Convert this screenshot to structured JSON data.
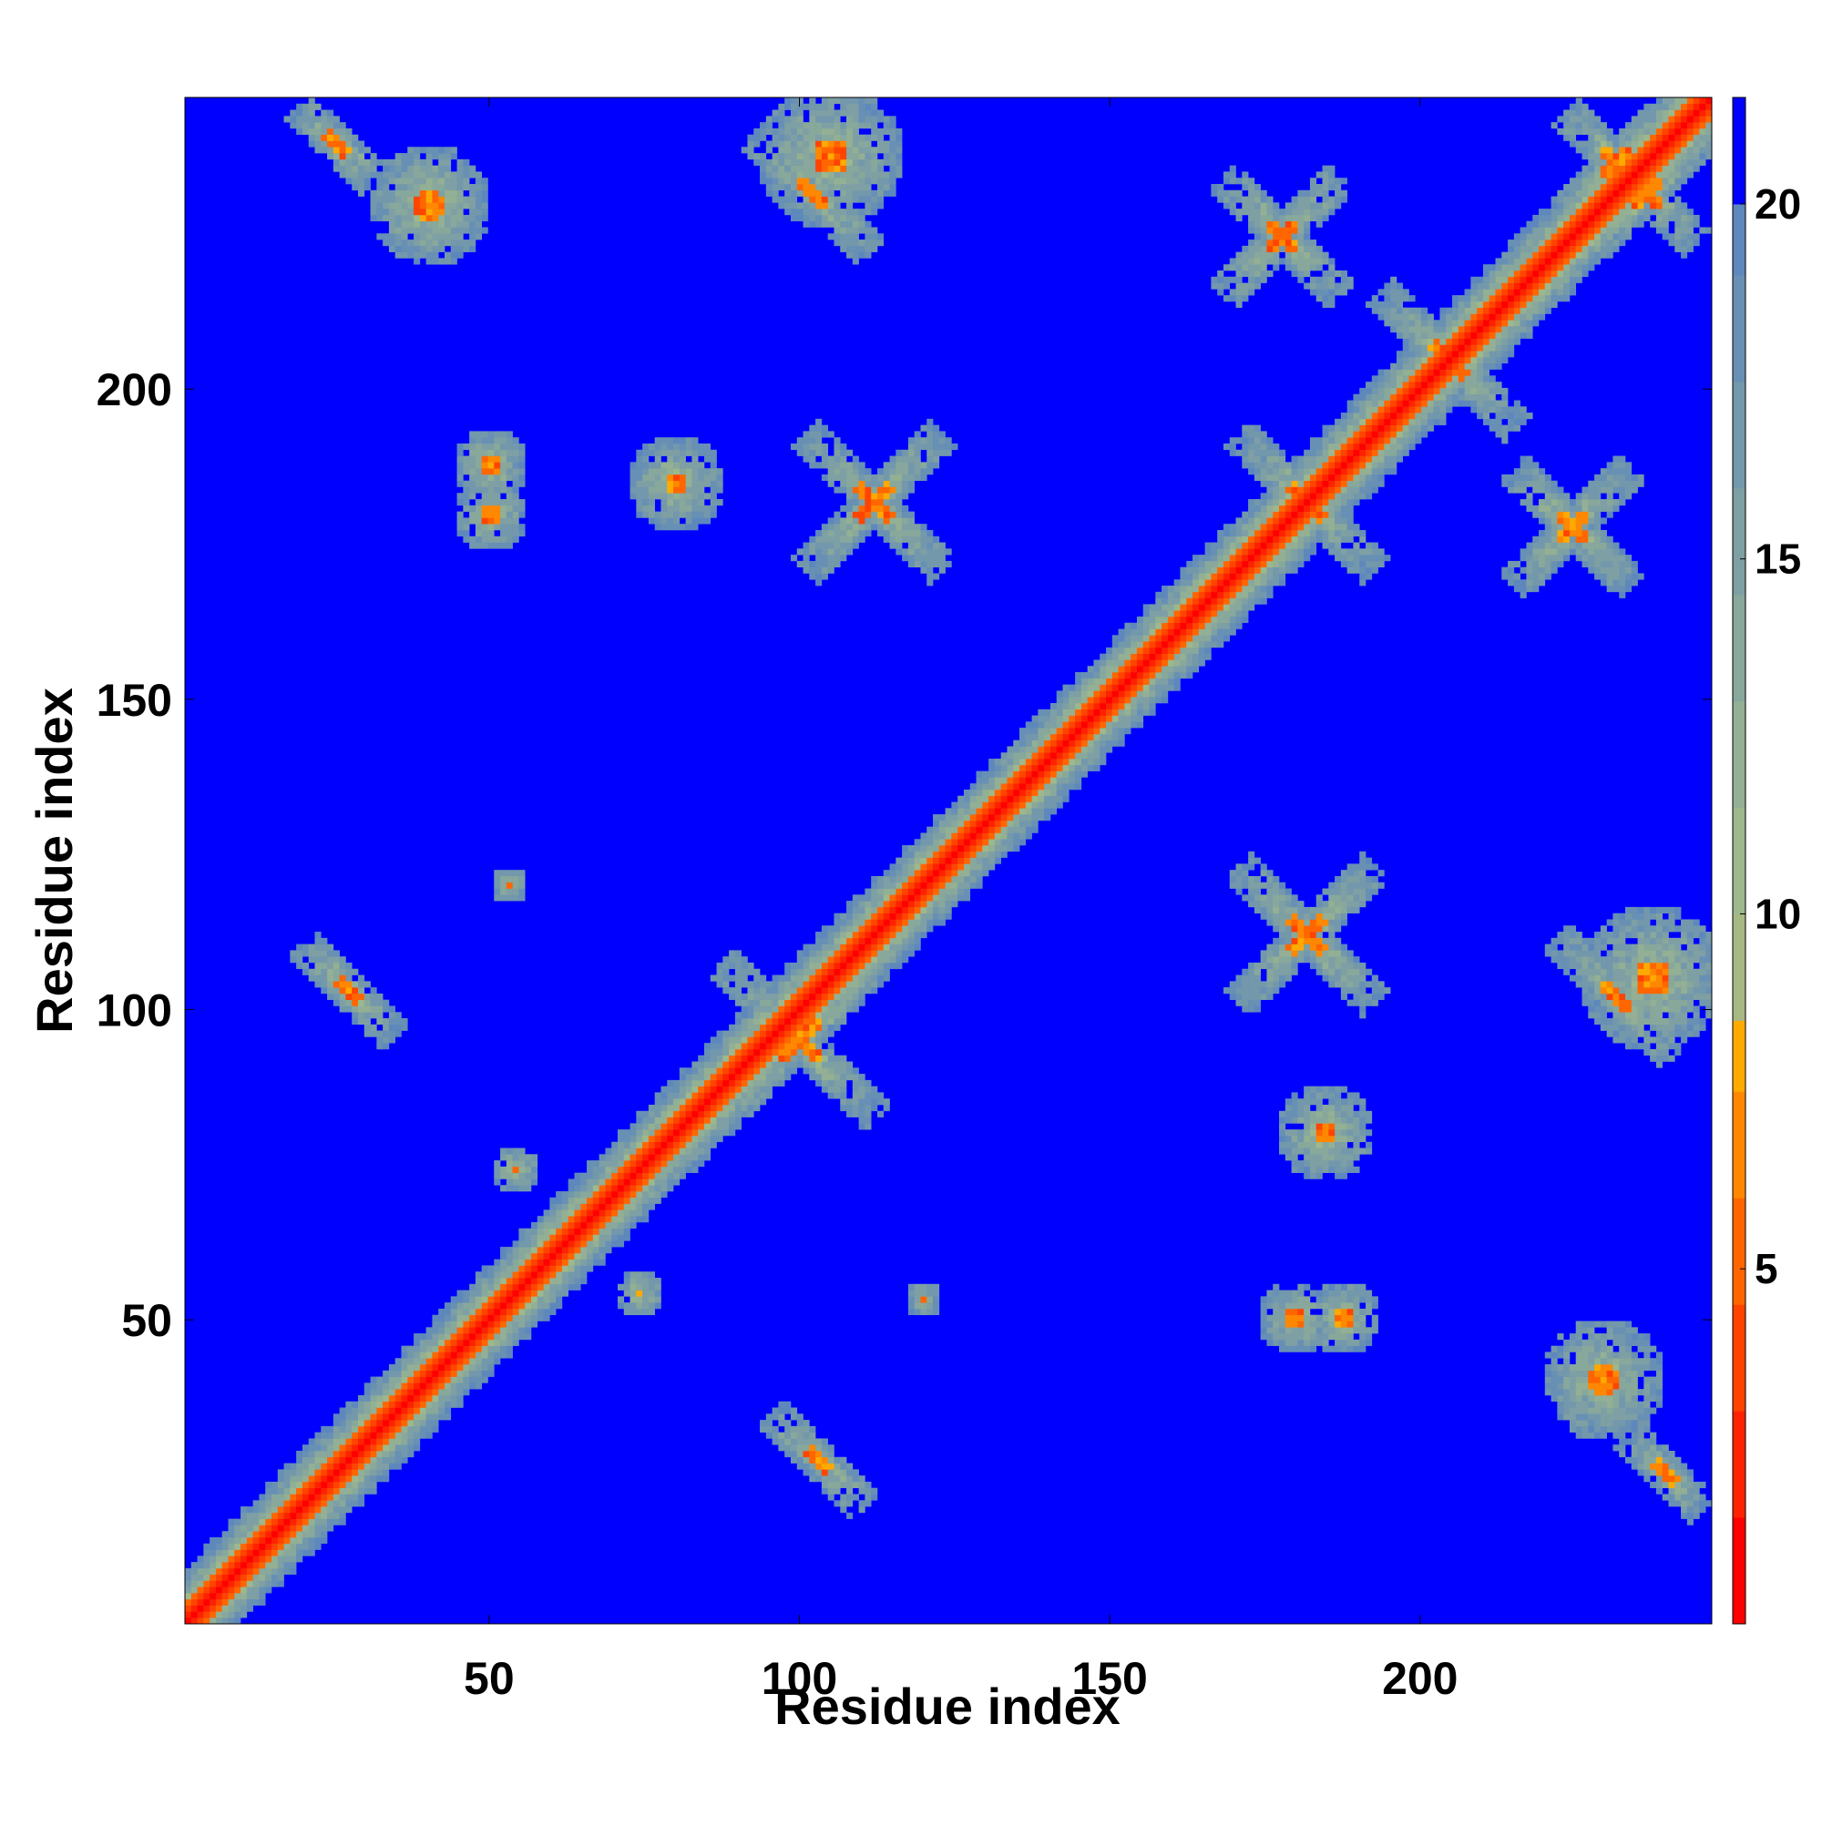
{
  "chart_data": {
    "type": "heatmap",
    "title": "",
    "xlabel": "Residue index",
    "ylabel": "Residue index",
    "xlim": [
      1,
      247
    ],
    "ylim": [
      1,
      247
    ],
    "x_ticks": [
      50,
      100,
      150,
      200
    ],
    "y_ticks": [
      50,
      100,
      150,
      200
    ],
    "colorbar": {
      "min": 0,
      "max": 21.5,
      "ticks": [
        5,
        10,
        15,
        20
      ],
      "levels": [
        {
          "from": 0,
          "to": 1.5,
          "color": "#ff0000"
        },
        {
          "from": 1.5,
          "to": 3,
          "color": "#ff2200"
        },
        {
          "from": 3,
          "to": 4.5,
          "color": "#ff4400"
        },
        {
          "from": 4.5,
          "to": 6,
          "color": "#ff6600"
        },
        {
          "from": 6,
          "to": 7.5,
          "color": "#ff8800"
        },
        {
          "from": 7.5,
          "to": 8.5,
          "color": "#ffaa00"
        },
        {
          "from": 8.5,
          "to": 10,
          "color": "#a8b884"
        },
        {
          "from": 10,
          "to": 11.5,
          "color": "#9db88c"
        },
        {
          "from": 11.5,
          "to": 13,
          "color": "#93b094"
        },
        {
          "from": 13,
          "to": 14.5,
          "color": "#88a89c"
        },
        {
          "from": 14.5,
          "to": 16,
          "color": "#7ea0a4"
        },
        {
          "from": 16,
          "to": 17.5,
          "color": "#7398ac"
        },
        {
          "from": 17.5,
          "to": 19,
          "color": "#6890b4"
        },
        {
          "from": 19,
          "to": 20,
          "color": "#5e88bc"
        },
        {
          "from": 20,
          "to": 21.5,
          "color": "#0000ff"
        }
      ]
    },
    "background_value": 21,
    "diagonal_band_width": 3,
    "contact_features": [
      {
        "kind": "cross",
        "x": 100,
        "y": 95,
        "spread": 18
      },
      {
        "kind": "cross",
        "x": 112,
        "y": 182,
        "spread": 16
      },
      {
        "kind": "cross",
        "x": 182,
        "y": 112,
        "spread": 16
      },
      {
        "kind": "cross",
        "x": 182,
        "y": 182,
        "spread": 16
      },
      {
        "kind": "cross",
        "x": 205,
        "y": 205,
        "spread": 16
      },
      {
        "kind": "cross",
        "x": 178,
        "y": 225,
        "spread": 14
      },
      {
        "kind": "cross",
        "x": 225,
        "y": 178,
        "spread": 14
      },
      {
        "kind": "cross",
        "x": 237,
        "y": 232,
        "spread": 12
      },
      {
        "kind": "cross",
        "x": 232,
        "y": 237,
        "spread": 12
      },
      {
        "kind": "anti",
        "x": 27,
        "y": 103,
        "spread": 11
      },
      {
        "kind": "anti",
        "x": 103,
        "y": 27,
        "spread": 11
      },
      {
        "kind": "anti",
        "x": 25,
        "y": 240,
        "spread": 9
      },
      {
        "kind": "anti",
        "x": 240,
        "y": 25,
        "spread": 9
      },
      {
        "kind": "anti",
        "x": 102,
        "y": 232,
        "spread": 14
      },
      {
        "kind": "anti",
        "x": 232,
        "y": 102,
        "spread": 14
      },
      {
        "kind": "blob",
        "x": 53,
        "y": 120,
        "spread": 3
      },
      {
        "kind": "blob",
        "x": 120,
        "y": 53,
        "spread": 3
      },
      {
        "kind": "blob",
        "x": 50,
        "y": 188,
        "spread": 6
      },
      {
        "kind": "blob",
        "x": 188,
        "y": 50,
        "spread": 6
      },
      {
        "kind": "blob",
        "x": 80,
        "y": 185,
        "spread": 8
      },
      {
        "kind": "blob",
        "x": 185,
        "y": 80,
        "spread": 8
      },
      {
        "kind": "blob",
        "x": 180,
        "y": 50,
        "spread": 6
      },
      {
        "kind": "blob",
        "x": 50,
        "y": 180,
        "spread": 6
      },
      {
        "kind": "blob",
        "x": 238,
        "y": 105,
        "spread": 12
      },
      {
        "kind": "blob",
        "x": 105,
        "y": 238,
        "spread": 12
      },
      {
        "kind": "blob",
        "x": 74,
        "y": 54,
        "spread": 4
      },
      {
        "kind": "blob",
        "x": 54,
        "y": 74,
        "spread": 4
      },
      {
        "kind": "blob",
        "x": 230,
        "y": 40,
        "spread": 10
      },
      {
        "kind": "blob",
        "x": 40,
        "y": 230,
        "spread": 10
      }
    ]
  }
}
